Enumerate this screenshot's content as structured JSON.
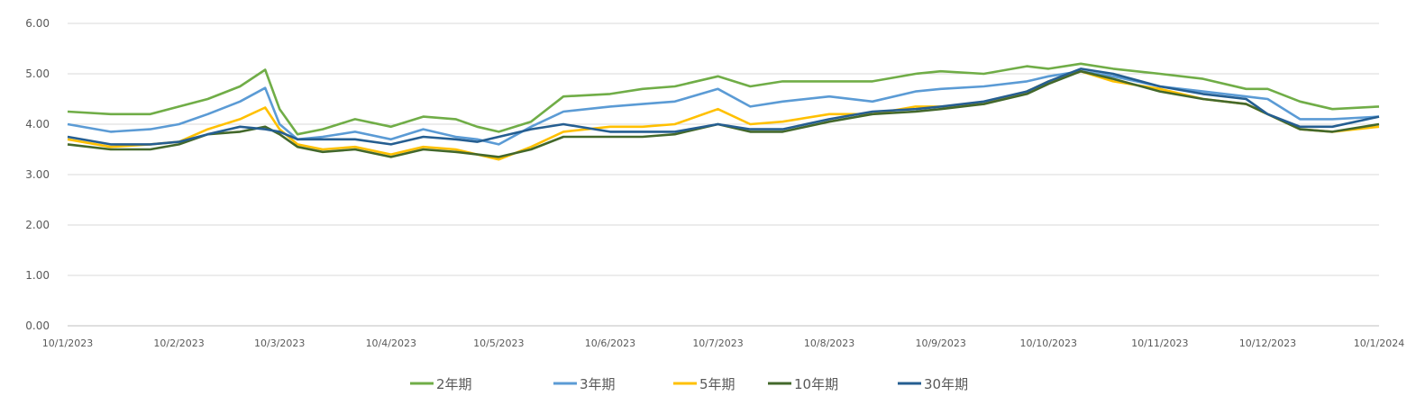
{
  "chart_data": {
    "type": "line",
    "title": "",
    "xlabel": "",
    "ylabel": "",
    "ylim": [
      0,
      6
    ],
    "yticks": [
      "0.00",
      "1.00",
      "2.00",
      "3.00",
      "4.00",
      "5.00",
      "6.00"
    ],
    "xtick_labels": [
      "10/1/2023",
      "10/2/2023",
      "10/3/2023",
      "10/4/2023",
      "10/5/2023",
      "10/6/2023",
      "10/7/2023",
      "10/8/2023",
      "10/9/2023",
      "10/10/2023",
      "10/11/2023",
      "10/12/2023",
      "10/1/2024"
    ],
    "xtick_dates": [
      "2023-01-10",
      "2023-02-10",
      "2023-03-10",
      "2023-04-10",
      "2023-05-10",
      "2023-06-10",
      "2023-07-10",
      "2023-08-10",
      "2023-09-10",
      "2023-10-10",
      "2023-11-10",
      "2023-12-10",
      "2024-01-10"
    ],
    "xlim": [
      "2023-01-10",
      "2024-01-10"
    ],
    "grid": "horizontal",
    "legend_position": "bottom",
    "x": [
      "2023-01-10",
      "2023-01-22",
      "2023-02-02",
      "2023-02-10",
      "2023-02-18",
      "2023-02-27",
      "2023-03-06",
      "2023-03-10",
      "2023-03-15",
      "2023-03-22",
      "2023-03-31",
      "2023-04-10",
      "2023-04-19",
      "2023-04-28",
      "2023-05-04",
      "2023-05-10",
      "2023-05-19",
      "2023-05-28",
      "2023-06-10",
      "2023-06-19",
      "2023-06-28",
      "2023-07-10",
      "2023-07-19",
      "2023-07-28",
      "2023-08-10",
      "2023-08-22",
      "2023-09-03",
      "2023-09-10",
      "2023-09-22",
      "2023-10-04",
      "2023-10-10",
      "2023-10-19",
      "2023-10-28",
      "2023-11-10",
      "2023-11-22",
      "2023-12-04",
      "2023-12-10",
      "2023-12-19",
      "2023-12-28",
      "2024-01-10"
    ],
    "series": [
      {
        "name": "2年期",
        "color": "#70AD47",
        "values": [
          4.25,
          4.2,
          4.2,
          4.35,
          4.5,
          4.75,
          5.08,
          4.3,
          3.8,
          3.9,
          4.1,
          3.95,
          4.15,
          4.1,
          3.95,
          3.85,
          4.05,
          4.55,
          4.6,
          4.7,
          4.75,
          4.95,
          4.75,
          4.85,
          4.85,
          4.85,
          5.0,
          5.05,
          5.0,
          5.15,
          5.1,
          5.2,
          5.1,
          5.0,
          4.9,
          4.7,
          4.7,
          4.45,
          4.3,
          4.35
        ]
      },
      {
        "name": "3年期",
        "color": "#5B9BD5",
        "values": [
          4.0,
          3.85,
          3.9,
          4.0,
          4.2,
          4.45,
          4.72,
          4.0,
          3.7,
          3.75,
          3.85,
          3.7,
          3.9,
          3.75,
          3.7,
          3.6,
          3.95,
          4.25,
          4.35,
          4.4,
          4.45,
          4.7,
          4.35,
          4.45,
          4.55,
          4.45,
          4.65,
          4.7,
          4.75,
          4.85,
          4.95,
          5.05,
          4.95,
          4.75,
          4.65,
          4.55,
          4.5,
          4.1,
          4.1,
          4.15
        ]
      },
      {
        "name": "5年期",
        "color": "#FFC000",
        "values": [
          3.7,
          3.55,
          3.6,
          3.65,
          3.9,
          4.1,
          4.33,
          3.9,
          3.6,
          3.5,
          3.55,
          3.4,
          3.55,
          3.5,
          3.4,
          3.3,
          3.55,
          3.85,
          3.95,
          3.95,
          4.0,
          4.3,
          4.0,
          4.05,
          4.2,
          4.2,
          4.35,
          4.35,
          4.4,
          4.65,
          4.85,
          5.05,
          4.85,
          4.7,
          4.5,
          4.4,
          4.2,
          3.9,
          3.85,
          3.95
        ]
      },
      {
        "name": "10年期",
        "color": "#43682B",
        "values": [
          3.6,
          3.5,
          3.5,
          3.6,
          3.8,
          3.85,
          3.95,
          3.8,
          3.55,
          3.45,
          3.5,
          3.35,
          3.5,
          3.45,
          3.4,
          3.35,
          3.5,
          3.75,
          3.75,
          3.75,
          3.8,
          4.0,
          3.85,
          3.85,
          4.05,
          4.2,
          4.25,
          4.3,
          4.4,
          4.6,
          4.8,
          5.05,
          4.9,
          4.65,
          4.5,
          4.4,
          4.2,
          3.9,
          3.85,
          4.0
        ]
      },
      {
        "name": "30年期",
        "color": "#255E91",
        "values": [
          3.75,
          3.6,
          3.6,
          3.65,
          3.8,
          3.95,
          3.9,
          3.85,
          3.7,
          3.7,
          3.7,
          3.6,
          3.75,
          3.7,
          3.65,
          3.75,
          3.9,
          4.0,
          3.85,
          3.85,
          3.85,
          4.0,
          3.9,
          3.9,
          4.1,
          4.25,
          4.3,
          4.35,
          4.45,
          4.65,
          4.85,
          5.1,
          5.0,
          4.75,
          4.6,
          4.5,
          4.2,
          3.95,
          3.95,
          4.15
        ]
      }
    ]
  }
}
